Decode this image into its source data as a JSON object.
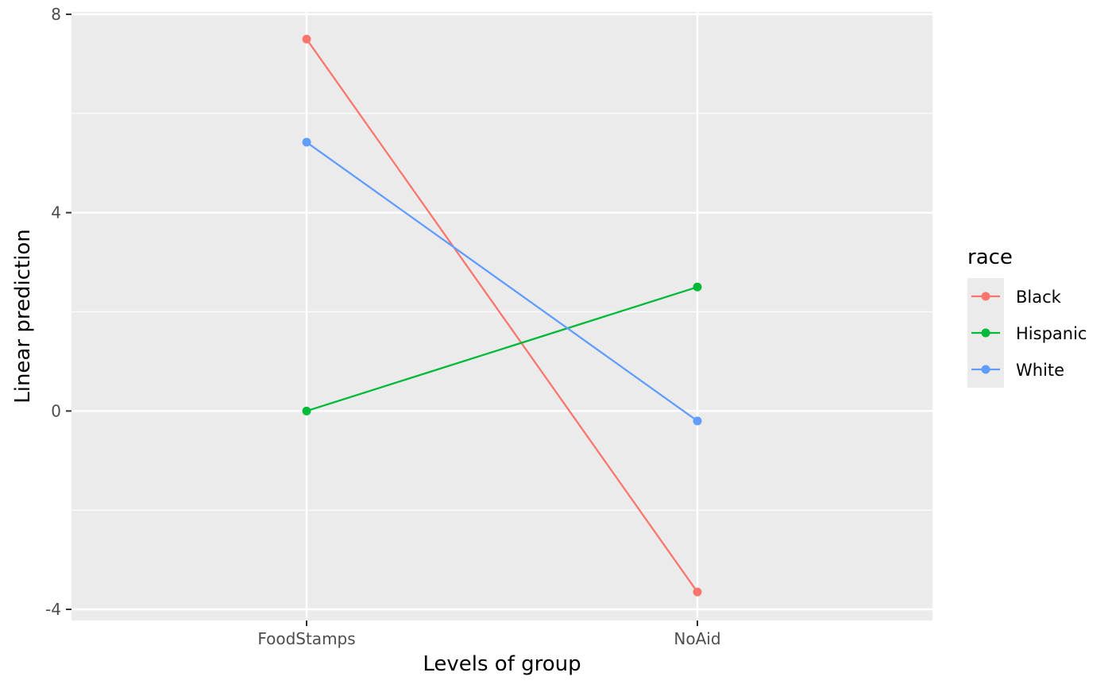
{
  "chart_data": {
    "type": "line",
    "title": "",
    "xlabel": "Levels of group",
    "ylabel": "Linear prediction",
    "categories": [
      "FoodStamps",
      "NoAid"
    ],
    "ylim": [
      -4.25,
      8
    ],
    "y_ticks": [
      -4,
      0,
      4,
      8
    ],
    "y_tick_labels": [
      "-4",
      "0",
      "4",
      "8"
    ],
    "grid": true,
    "legend": {
      "title": "race",
      "position": "right"
    },
    "series": [
      {
        "name": "Black",
        "color": "#F8766D",
        "values": [
          7.5,
          -3.65
        ]
      },
      {
        "name": "Hispanic",
        "color": "#00BA38",
        "values": [
          0.0,
          2.5
        ]
      },
      {
        "name": "White",
        "color": "#619CFF",
        "values": [
          5.42,
          -0.2
        ]
      }
    ]
  }
}
